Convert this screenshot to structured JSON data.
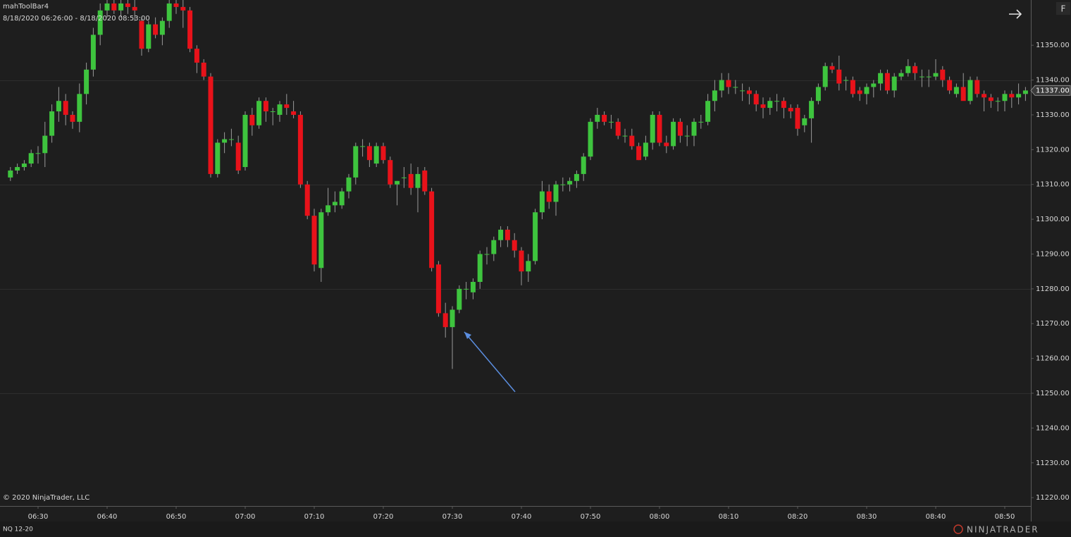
{
  "chart_data": {
    "type": "candlestick",
    "toolbar_name": "mahToolBar4",
    "date_range": "8/18/2020 06:26:00 - 8/18/2020 08:53:00",
    "copyright": "© 2020 NinjaTrader, LLC",
    "instrument": "NQ 12-20",
    "logo": "NINJATRADER",
    "button": "F",
    "up_color": "#3ec43e",
    "down_color": "#e8121a",
    "wick_color": "#9a9a9a",
    "categories": [
      null,
      null,
      null,
      null,
      "06:30",
      null,
      null,
      null,
      null,
      null,
      null,
      null,
      null,
      null,
      "06:40",
      null,
      null,
      null,
      null,
      null,
      null,
      null,
      null,
      null,
      "06:50",
      null,
      null,
      null,
      null,
      null,
      null,
      null,
      null,
      null,
      "07:00",
      null,
      null,
      null,
      null,
      null,
      null,
      null,
      null,
      null,
      "07:10",
      null,
      null,
      null,
      null,
      null,
      null,
      null,
      null,
      null,
      "07:20",
      null,
      null,
      null,
      null,
      null,
      null,
      null,
      null,
      null,
      "07:30",
      null,
      null,
      null,
      null,
      null,
      null,
      null,
      null,
      null,
      "07:40",
      null,
      null,
      null,
      null,
      null,
      null,
      null,
      null,
      null,
      "07:50",
      null,
      null,
      null,
      null,
      null,
      null,
      null,
      null,
      null,
      "08:00",
      null,
      null,
      null,
      null,
      null,
      null,
      null,
      null,
      null,
      "08:10",
      null,
      null,
      null,
      null,
      null,
      null,
      null,
      null,
      null,
      "08:20",
      null,
      null,
      null,
      null,
      null,
      null,
      null,
      null,
      null,
      "08:30",
      null,
      null,
      null,
      null,
      null,
      null,
      null,
      null,
      null,
      "08:40",
      null,
      null,
      null,
      null,
      null,
      null,
      null,
      null,
      null,
      "08:50",
      null,
      null,
      null
    ],
    "open": [
      11312,
      11314,
      11315,
      11316,
      11319,
      11319,
      11324,
      11331,
      11334,
      11330,
      11328,
      11336,
      11343,
      11353,
      11360,
      11362,
      11360,
      11362,
      11361,
      11357,
      11349,
      11356,
      11353,
      11357,
      11362,
      11361,
      11360,
      11349,
      11345,
      11341,
      11313,
      11322,
      11323,
      11322,
      11315,
      11330,
      11327,
      11334,
      11331,
      11330,
      11333,
      11331,
      11330,
      11310,
      11301,
      11286,
      11302,
      11304,
      11304,
      11308,
      11312,
      11321,
      11321,
      11316,
      11321,
      11317,
      11310,
      11312,
      11313,
      11309,
      11314,
      11308,
      11287,
      11273,
      11269,
      11274,
      11280,
      11279,
      11282,
      11290,
      11290,
      11294,
      11297,
      11294,
      11291,
      11285,
      11288,
      11302,
      11308,
      11305,
      11310,
      11310,
      11311,
      11313,
      11318,
      11328,
      11330,
      11328,
      11328,
      11324,
      11324,
      11321,
      11318,
      11322,
      11330,
      11322,
      11321,
      11328,
      11324,
      11324,
      11328,
      11328,
      11334,
      11337,
      11340,
      11338,
      11337,
      11337,
      11336,
      11333,
      11332,
      11334,
      11334,
      11332,
      11332,
      11327,
      11329,
      11334,
      11338,
      11344,
      11343,
      11340,
      11340,
      11337,
      11336,
      11338,
      11339,
      11342,
      11337,
      11341,
      11342,
      11344,
      11341,
      11341,
      11341,
      11343,
      11340,
      11336,
      11338,
      11334,
      11340,
      11336,
      11335,
      11334,
      11334,
      11336,
      11335,
      11336
    ],
    "high": [
      11315,
      11316,
      11317,
      11320,
      11321,
      11328,
      11333,
      11338,
      11336,
      11331,
      11339,
      11345,
      11355,
      11362,
      11363,
      11363,
      11363,
      11363,
      11363,
      11358,
      11357,
      11358,
      11358,
      11363,
      11363,
      11363,
      11361,
      11350,
      11346,
      11342,
      11323,
      11325,
      11326,
      11324,
      11331,
      11332,
      11335,
      11335,
      11332,
      11334,
      11336,
      11334,
      11331,
      11311,
      11303,
      11303,
      11309,
      11308,
      11309,
      11313,
      11322,
      11323,
      11322,
      11322,
      11322,
      11318,
      11311,
      11315,
      11316,
      11315,
      11315,
      11309,
      11288,
      11276,
      11275,
      11281,
      11282,
      11283,
      11291,
      11292,
      11295,
      11298,
      11298,
      11296,
      11292,
      11290,
      11303,
      11311,
      11310,
      11311,
      11312,
      11312,
      11314,
      11319,
      11329,
      11332,
      11331,
      11330,
      11329,
      11326,
      11326,
      11322,
      11324,
      11331,
      11331,
      11324,
      11329,
      11329,
      11327,
      11329,
      11330,
      11336,
      11340,
      11342,
      11342,
      11340,
      11339,
      11338,
      11337,
      11335,
      11335,
      11336,
      11335,
      11333,
      11333,
      11330,
      11335,
      11339,
      11345,
      11345,
      11347,
      11341,
      11341,
      11338,
      11339,
      11340,
      11343,
      11343,
      11342,
      11343,
      11346,
      11345,
      11343,
      11343,
      11346,
      11344,
      11341,
      11339,
      11342,
      11341,
      11341,
      11337,
      11336,
      11335,
      11337,
      11337,
      11339,
      11338
    ],
    "low": [
      11311,
      11313,
      11314,
      11315,
      11316,
      11315,
      11322,
      11328,
      11327,
      11326,
      11325,
      11333,
      11341,
      11350,
      11358,
      11359,
      11358,
      11359,
      11357,
      11347,
      11348,
      11352,
      11350,
      11355,
      11359,
      11355,
      11348,
      11342,
      11340,
      11312,
      11312,
      11319,
      11321,
      11313,
      11314,
      11324,
      11326,
      11328,
      11327,
      11328,
      11330,
      11329,
      11309,
      11300,
      11285,
      11282,
      11301,
      11302,
      11303,
      11306,
      11310,
      11318,
      11315,
      11315,
      11316,
      11309,
      11304,
      11309,
      11307,
      11302,
      11307,
      11285,
      11272,
      11266,
      11257,
      11273,
      11277,
      11277,
      11280,
      11287,
      11288,
      11292,
      11292,
      11289,
      11281,
      11282,
      11287,
      11300,
      11303,
      11301,
      11308,
      11308,
      11309,
      11311,
      11317,
      11326,
      11327,
      11326,
      11323,
      11322,
      11320,
      11317,
      11317,
      11320,
      11321,
      11319,
      11320,
      11322,
      11321,
      11321,
      11326,
      11327,
      11331,
      11335,
      11336,
      11336,
      11334,
      11333,
      11331,
      11329,
      11330,
      11331,
      11329,
      11329,
      11324,
      11325,
      11322,
      11333,
      11337,
      11342,
      11337,
      11337,
      11335,
      11334,
      11333,
      11335,
      11337,
      11336,
      11335,
      11340,
      11341,
      11340,
      11338,
      11338,
      11340,
      11338,
      11336,
      11335,
      11335,
      11333,
      11335,
      11331,
      11332,
      11331,
      11331,
      11332,
      11333,
      11334
    ],
    "close": [
      11314,
      11315,
      11316,
      11319,
      11319,
      11324,
      11331,
      11334,
      11330,
      11328,
      11336,
      11343,
      11353,
      11360,
      11362,
      11360,
      11362,
      11361,
      11360,
      11349,
      11356,
      11353,
      11357,
      11362,
      11361,
      11360,
      11349,
      11345,
      11341,
      11313,
      11322,
      11323,
      11323,
      11314,
      11330,
      11327,
      11334,
      11331,
      11331,
      11333,
      11332,
      11330,
      11310,
      11301,
      11287,
      11302,
      11304,
      11305,
      11308,
      11312,
      11321,
      11321,
      11317,
      11321,
      11317,
      11310,
      11311,
      11312,
      11309,
      11313,
      11308,
      11286,
      11273,
      11269,
      11274,
      11280,
      11280,
      11282,
      11290,
      11290,
      11294,
      11297,
      11294,
      11291,
      11285,
      11288,
      11302,
      11308,
      11305,
      11310,
      11310,
      11311,
      11313,
      11318,
      11328,
      11330,
      11328,
      11328,
      11324,
      11324,
      11321,
      11317,
      11322,
      11330,
      11322,
      11321,
      11328,
      11324,
      11324,
      11328,
      11328,
      11334,
      11337,
      11340,
      11338,
      11338,
      11337,
      11336,
      11333,
      11332,
      11334,
      11334,
      11332,
      11331,
      11326,
      11329,
      11334,
      11338,
      11344,
      11343,
      11339,
      11340,
      11336,
      11336,
      11338,
      11339,
      11342,
      11337,
      11341,
      11342,
      11344,
      11342,
      11341,
      11341,
      11342,
      11340,
      11337,
      11338,
      11334,
      11340,
      11336,
      11335,
      11334,
      11334,
      11336,
      11335,
      11336,
      11337
    ],
    "ylim": [
      11217.6,
      11363
    ],
    "yticks": [
      {
        "value": 11220,
        "label": "11220.00"
      },
      {
        "value": 11230,
        "label": "11230.00"
      },
      {
        "value": 11240,
        "label": "11240.00"
      },
      {
        "value": 11250,
        "label": "11250.00"
      },
      {
        "value": 11260,
        "label": "11260.00"
      },
      {
        "value": 11270,
        "label": "11270.00"
      },
      {
        "value": 11280,
        "label": "11280.00"
      },
      {
        "value": 11290,
        "label": "11290.00"
      },
      {
        "value": 11300,
        "label": "11300.00"
      },
      {
        "value": 11310,
        "label": "11310.00"
      },
      {
        "value": 11320,
        "label": "11320.00"
      },
      {
        "value": 11330,
        "label": "11330.00"
      },
      {
        "value": 11340,
        "label": "11340.00"
      },
      {
        "value": 11350,
        "label": "11350.00"
      }
    ],
    "grid_lines": [
      11250,
      11280,
      11310,
      11340
    ],
    "last_price": {
      "value": 11337,
      "label": "11337.00"
    }
  }
}
